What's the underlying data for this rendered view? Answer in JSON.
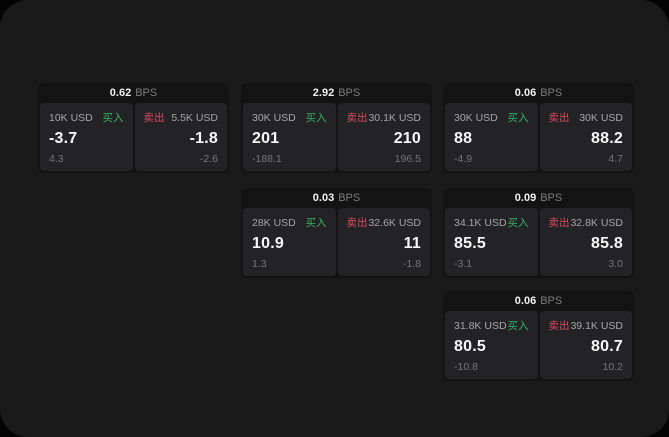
{
  "labels": {
    "bps": "BPS",
    "buy": "买入",
    "sell": "卖出"
  },
  "colors": {
    "buy": "#3ab06a",
    "sell": "#d8495f",
    "panel_bg": "#1a1a1b",
    "card_bg": "#131314",
    "pane_bg": "#232325",
    "price_text": "#f7f7f7",
    "muted_text": "#76767a"
  },
  "cards": [
    {
      "spread": "0.62",
      "buy": {
        "notional": "10K USD",
        "price": "-3.7",
        "delta": "4.3"
      },
      "sell": {
        "notional": "5.5K USD",
        "price": "-1.8",
        "delta": "-2.6"
      }
    },
    {
      "spread": "2.92",
      "buy": {
        "notional": "30K USD",
        "price": "201",
        "delta": "-188.1"
      },
      "sell": {
        "notional": "30.1K USD",
        "price": "210",
        "delta": "196.5"
      }
    },
    {
      "spread": "0.06",
      "buy": {
        "notional": "30K USD",
        "price": "88",
        "delta": "-4.9"
      },
      "sell": {
        "notional": "30K USD",
        "price": "88.2",
        "delta": "4.7"
      }
    },
    {
      "spread": "0.03",
      "buy": {
        "notional": "28K USD",
        "price": "10.9",
        "delta": "1.3"
      },
      "sell": {
        "notional": "32.6K USD",
        "price": "11",
        "delta": "-1.8"
      }
    },
    {
      "spread": "0.09",
      "buy": {
        "notional": "34.1K USD",
        "price": "85.5",
        "delta": "-3.1"
      },
      "sell": {
        "notional": "32.8K USD",
        "price": "85.8",
        "delta": "3.0"
      }
    },
    {
      "spread": "0.06",
      "buy": {
        "notional": "31.8K USD",
        "price": "80.5",
        "delta": "-10.8"
      },
      "sell": {
        "notional": "39.1K USD",
        "price": "80.7",
        "delta": "10.2"
      }
    }
  ]
}
